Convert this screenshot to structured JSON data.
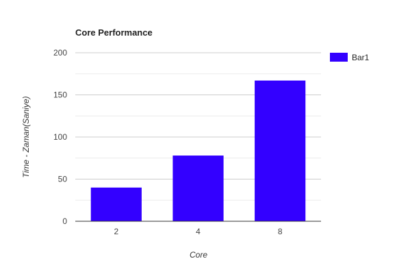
{
  "chart_data": {
    "type": "bar",
    "title": "Core Performance",
    "xlabel": "Core",
    "ylabel": "Time - Zaman(Saniye)",
    "categories": [
      "2",
      "4",
      "8"
    ],
    "series": [
      {
        "name": "Bar1",
        "values": [
          40,
          78,
          167
        ],
        "color": "#3300ff"
      }
    ],
    "ylim": [
      0,
      200
    ],
    "yticks": [
      "0",
      "50",
      "100",
      "150",
      "200"
    ],
    "grid": true,
    "legend": "right"
  }
}
